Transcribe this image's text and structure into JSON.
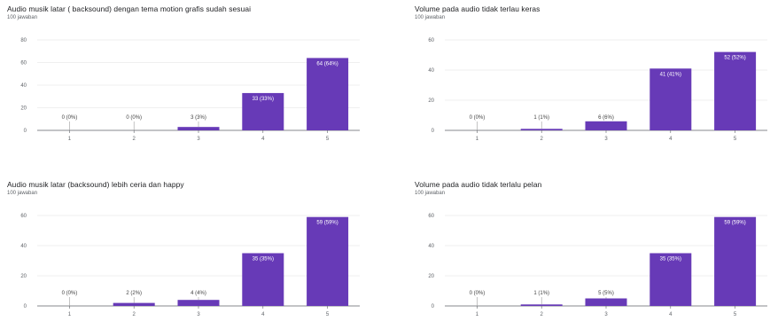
{
  "chart_data": [
    {
      "type": "bar",
      "title": "Audio musik latar ( backsound) dengan tema motion grafis sudah sesuai",
      "subtitle": "100 jawaban",
      "categories": [
        "1",
        "2",
        "3",
        "4",
        "5"
      ],
      "values": [
        0,
        0,
        3,
        33,
        64
      ],
      "data_labels": [
        "0 (0%)",
        "0 (0%)",
        "3 (3%)",
        "33 (33%)",
        "64 (64%)"
      ],
      "ylim": [
        0,
        80
      ],
      "yticks": [
        "0",
        "20",
        "40",
        "60",
        "80"
      ],
      "grid": true,
      "color": "#673ab7"
    },
    {
      "type": "bar",
      "title": "Volume pada audio tidak terlau keras",
      "subtitle": "100 jawaban",
      "categories": [
        "1",
        "2",
        "3",
        "4",
        "5"
      ],
      "values": [
        0,
        1,
        6,
        41,
        52
      ],
      "data_labels": [
        "0 (0%)",
        "1 (1%)",
        "6 (6%)",
        "41 (41%)",
        "52 (52%)"
      ],
      "ylim": [
        0,
        60
      ],
      "yticks": [
        "0",
        "20",
        "40",
        "60"
      ],
      "grid": true,
      "color": "#673ab7"
    },
    {
      "type": "bar",
      "title": "Audio musik latar (backsound) lebih ceria dan happy",
      "subtitle": "100 jawaban",
      "categories": [
        "1",
        "2",
        "3",
        "4",
        "5"
      ],
      "values": [
        0,
        2,
        4,
        35,
        59
      ],
      "data_labels": [
        "0 (0%)",
        "2 (2%)",
        "4 (4%)",
        "35 (35%)",
        "59 (59%)"
      ],
      "ylim": [
        0,
        60
      ],
      "yticks": [
        "0",
        "20",
        "40",
        "60"
      ],
      "grid": true,
      "color": "#673ab7"
    },
    {
      "type": "bar",
      "title": "Volume pada audio tidak terlalu pelan",
      "subtitle": "100 jawaban",
      "categories": [
        "1",
        "2",
        "3",
        "4",
        "5"
      ],
      "values": [
        0,
        1,
        5,
        35,
        59
      ],
      "data_labels": [
        "0 (0%)",
        "1 (1%)",
        "5 (5%)",
        "35 (35%)",
        "59 (59%)"
      ],
      "ylim": [
        0,
        60
      ],
      "yticks": [
        "0",
        "20",
        "40",
        "60"
      ],
      "grid": true,
      "color": "#673ab7"
    }
  ]
}
